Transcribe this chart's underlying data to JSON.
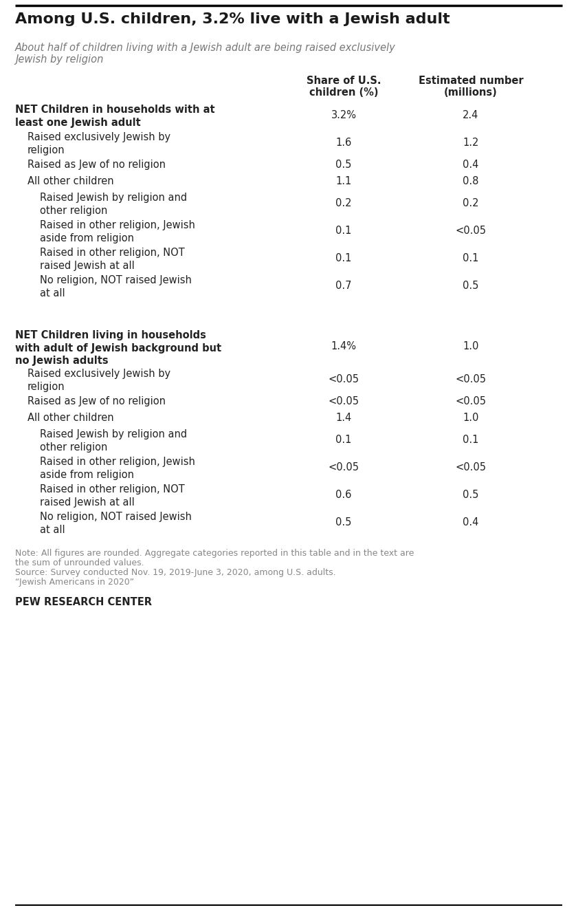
{
  "title": "Among U.S. children, 3.2% live with a Jewish adult",
  "subtitle": "About half of children living with a Jewish adult are being raised exclusively\nJewish by religion",
  "col1_header_line1": "Share of U.S.",
  "col1_header_line2": "children (%)",
  "col2_header_line1": "Estimated number",
  "col2_header_line2": "(millions)",
  "rows": [
    {
      "label": "NET Children in households with at\nleast one Jewish adult",
      "col1": "3.2%",
      "col2": "2.4",
      "indent": 0,
      "bold": true,
      "is_net": true,
      "separator_before": false,
      "extra_space_after": false
    },
    {
      "label": "Raised exclusively Jewish by\nreligion",
      "col1": "1.6",
      "col2": "1.2",
      "indent": 1,
      "bold": false,
      "is_net": false,
      "separator_before": false,
      "extra_space_after": false
    },
    {
      "label": "Raised as Jew of no religion",
      "col1": "0.5",
      "col2": "0.4",
      "indent": 1,
      "bold": false,
      "is_net": false,
      "separator_before": false,
      "extra_space_after": false
    },
    {
      "label": "All other children",
      "col1": "1.1",
      "col2": "0.8",
      "indent": 1,
      "bold": false,
      "is_net": false,
      "separator_before": false,
      "extra_space_after": false
    },
    {
      "label": "Raised Jewish by religion and\nother religion",
      "col1": "0.2",
      "col2": "0.2",
      "indent": 2,
      "bold": false,
      "is_net": false,
      "separator_before": false,
      "extra_space_after": false
    },
    {
      "label": "Raised in other religion, Jewish\naside from religion",
      "col1": "0.1",
      "col2": "<0.05",
      "indent": 2,
      "bold": false,
      "is_net": false,
      "separator_before": false,
      "extra_space_after": false
    },
    {
      "label": "Raised in other religion, NOT\nraised Jewish at all",
      "col1": "0.1",
      "col2": "0.1",
      "indent": 2,
      "bold": false,
      "is_net": false,
      "separator_before": false,
      "extra_space_after": false
    },
    {
      "label": "No religion, NOT raised Jewish\nat all",
      "col1": "0.7",
      "col2": "0.5",
      "indent": 2,
      "bold": false,
      "is_net": false,
      "separator_before": false,
      "extra_space_after": true
    },
    {
      "label": "NET Children living in households\nwith adult of Jewish background but\nno Jewish adults",
      "col1": "1.4%",
      "col2": "1.0",
      "indent": 0,
      "bold": true,
      "is_net": true,
      "separator_before": true,
      "extra_space_after": false
    },
    {
      "label": "Raised exclusively Jewish by\nreligion",
      "col1": "<0.05",
      "col2": "<0.05",
      "indent": 1,
      "bold": false,
      "is_net": false,
      "separator_before": false,
      "extra_space_after": false
    },
    {
      "label": "Raised as Jew of no religion",
      "col1": "<0.05",
      "col2": "<0.05",
      "indent": 1,
      "bold": false,
      "is_net": false,
      "separator_before": false,
      "extra_space_after": false
    },
    {
      "label": "All other children",
      "col1": "1.4",
      "col2": "1.0",
      "indent": 1,
      "bold": false,
      "is_net": false,
      "separator_before": false,
      "extra_space_after": false
    },
    {
      "label": "Raised Jewish by religion and\nother religion",
      "col1": "0.1",
      "col2": "0.1",
      "indent": 2,
      "bold": false,
      "is_net": false,
      "separator_before": false,
      "extra_space_after": false
    },
    {
      "label": "Raised in other religion, Jewish\naside from religion",
      "col1": "<0.05",
      "col2": "<0.05",
      "indent": 2,
      "bold": false,
      "is_net": false,
      "separator_before": false,
      "extra_space_after": false
    },
    {
      "label": "Raised in other religion, NOT\nraised Jewish at all",
      "col1": "0.6",
      "col2": "0.5",
      "indent": 2,
      "bold": false,
      "is_net": false,
      "separator_before": false,
      "extra_space_after": false
    },
    {
      "label": "No religion, NOT raised Jewish\nat all",
      "col1": "0.5",
      "col2": "0.4",
      "indent": 2,
      "bold": false,
      "is_net": false,
      "separator_before": false,
      "extra_space_after": false
    }
  ],
  "note_line1": "Note: All figures are rounded. Aggregate categories reported in this table and in the text are",
  "note_line2": "the sum of unrounded values.",
  "note_line3": "Source: Survey conducted Nov. 19, 2019-June 3, 2020, among U.S. adults.",
  "note_line4": "“Jewish Americans in 2020”",
  "pew_label": "PEW RESEARCH CENTER",
  "bg_color": "#ffffff",
  "text_color": "#222222",
  "title_color": "#1a1a1a",
  "subtitle_color": "#777777",
  "note_color": "#888888",
  "top_line_color": "#000000",
  "bottom_line_color": "#000000"
}
